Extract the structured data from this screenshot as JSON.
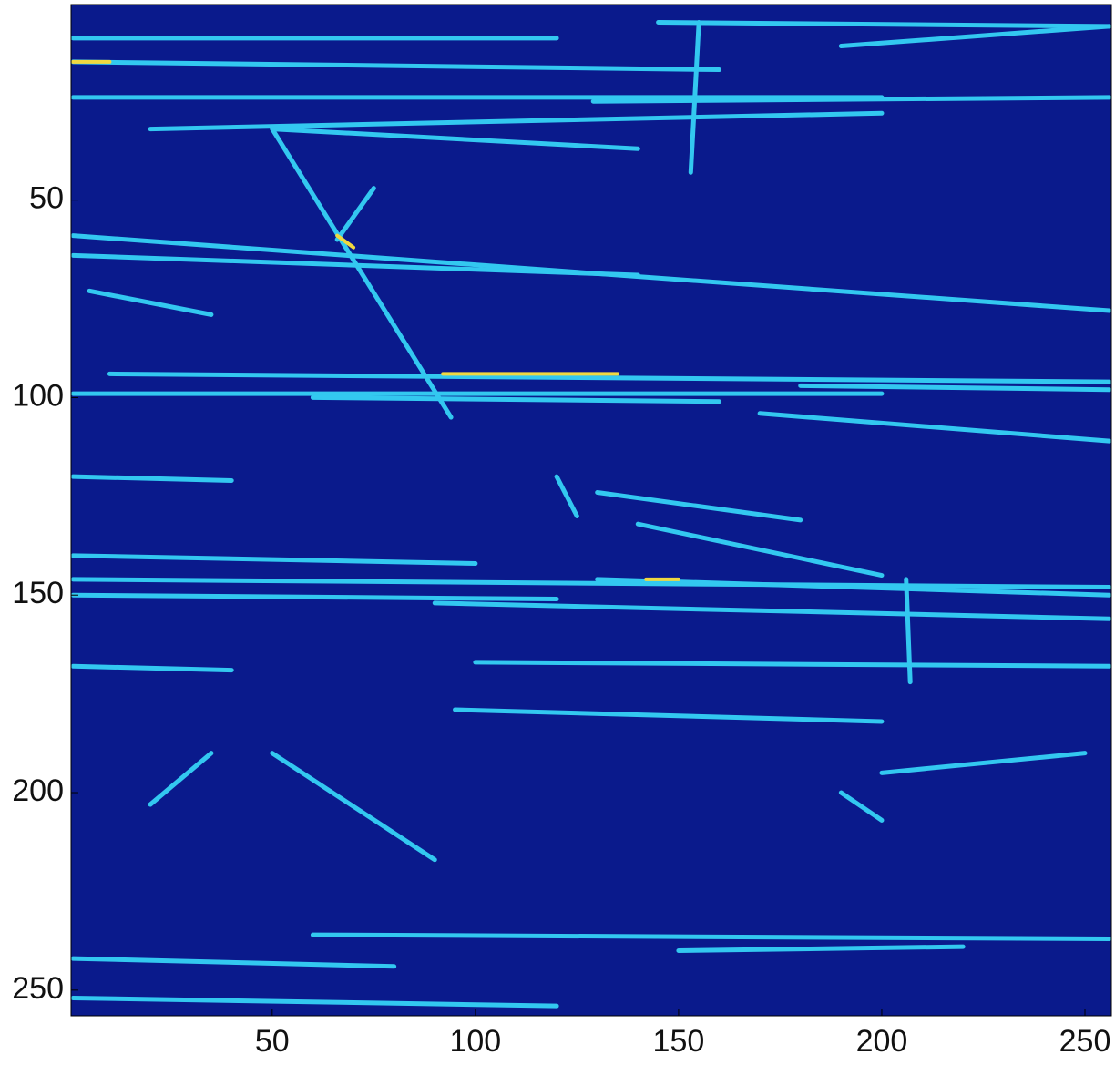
{
  "chart_data": {
    "type": "image",
    "background": "#0a1a8c",
    "track_color": "#33c8f0",
    "hot_color": "#f0d840",
    "xlim": [
      0.5,
      256.5
    ],
    "ylim": [
      0.5,
      256.5
    ],
    "y_reversed": true,
    "xticks": [
      50,
      100,
      150,
      200,
      250
    ],
    "yticks": [
      50,
      100,
      150,
      200,
      250
    ],
    "tracks": [
      [
        1,
        9,
        120,
        9
      ],
      [
        1,
        15,
        160,
        17
      ],
      [
        1,
        24,
        200,
        24
      ],
      [
        20,
        32,
        200,
        28
      ],
      [
        50,
        32,
        140,
        37
      ],
      [
        50,
        32,
        94,
        105
      ],
      [
        1,
        59,
        256,
        78
      ],
      [
        1,
        64,
        140,
        69
      ],
      [
        10,
        94,
        256,
        96
      ],
      [
        1,
        99,
        200,
        99
      ],
      [
        60,
        100,
        160,
        101
      ],
      [
        180,
        97,
        256,
        98
      ],
      [
        170,
        104,
        256,
        111
      ],
      [
        1,
        120,
        40,
        121
      ],
      [
        130,
        124,
        180,
        131
      ],
      [
        140,
        132,
        200,
        145
      ],
      [
        1,
        140,
        100,
        142
      ],
      [
        1,
        146,
        256,
        148
      ],
      [
        1,
        150,
        120,
        151
      ],
      [
        130,
        146,
        256,
        150
      ],
      [
        90,
        152,
        256,
        156
      ],
      [
        1,
        168,
        40,
        169
      ],
      [
        100,
        167,
        256,
        168
      ],
      [
        95,
        179,
        200,
        182
      ],
      [
        50,
        190,
        90,
        217
      ],
      [
        20,
        203,
        35,
        190
      ],
      [
        60,
        236,
        256,
        237
      ],
      [
        150,
        240,
        220,
        239
      ],
      [
        1,
        242,
        80,
        244
      ],
      [
        1,
        252,
        120,
        254
      ],
      [
        200,
        195,
        250,
        190
      ],
      [
        5,
        73,
        35,
        79
      ],
      [
        66,
        60,
        75,
        47
      ],
      [
        190,
        11,
        256,
        6
      ],
      [
        145,
        5,
        256,
        6
      ],
      [
        129,
        25,
        256,
        24
      ],
      [
        155,
        5,
        153,
        43
      ],
      [
        120,
        120,
        125,
        130
      ],
      [
        190,
        200,
        200,
        207
      ],
      [
        206,
        146,
        207,
        172
      ]
    ],
    "hot_tracks": [
      [
        92,
        94,
        135,
        94
      ],
      [
        1,
        15,
        10,
        15
      ],
      [
        66,
        59,
        70,
        62
      ],
      [
        142,
        146,
        150,
        146
      ]
    ]
  }
}
